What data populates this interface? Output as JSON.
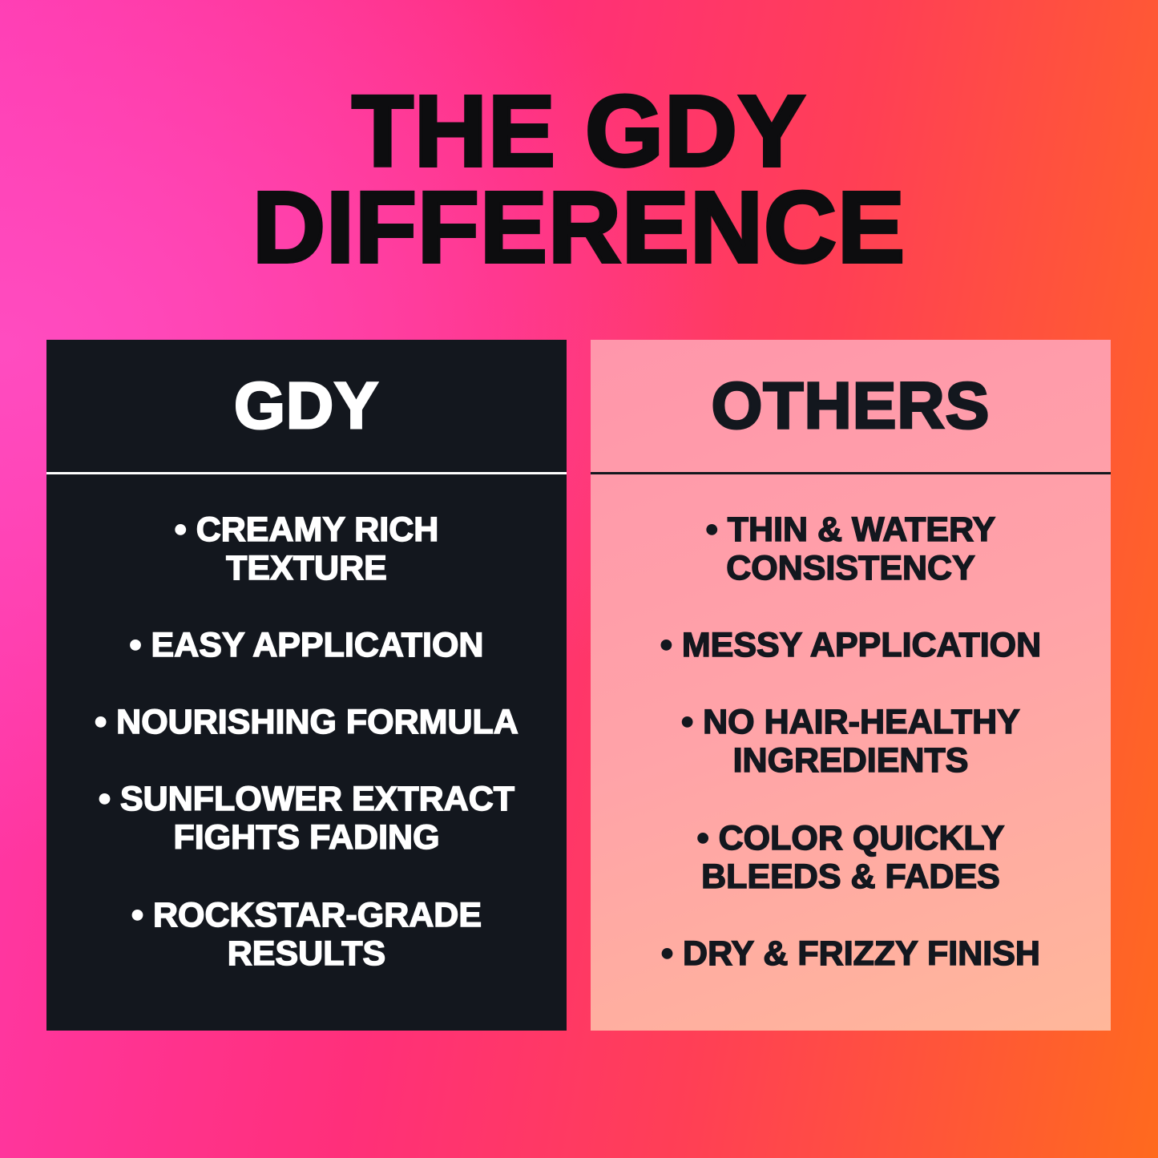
{
  "title": {
    "line1": "THE GDY",
    "line2": "DIFFERENCE"
  },
  "colors": {
    "dark_panel": "#13171e",
    "light_panel": "#ffa3a8",
    "bg_left": "#ff39b0",
    "bg_right": "#ff6a1e"
  },
  "gdy": {
    "heading": "GDY",
    "items": [
      "• CREAMY RICH\nTEXTURE",
      "• EASY APPLICATION",
      "• NOURISHING FORMULA",
      "• SUNFLOWER EXTRACT\nFIGHTS FADING",
      "• ROCKSTAR-GRADE\nRESULTS"
    ]
  },
  "others": {
    "heading": "OTHERS",
    "items": [
      "• THIN & WATERY\nCONSISTENCY",
      "• MESSY APPLICATION",
      "• NO HAIR-HEALTHY\nINGREDIENTS",
      "• COLOR QUICKLY\nBLEEDS & FADES",
      "• DRY & FRIZZY FINISH"
    ]
  }
}
